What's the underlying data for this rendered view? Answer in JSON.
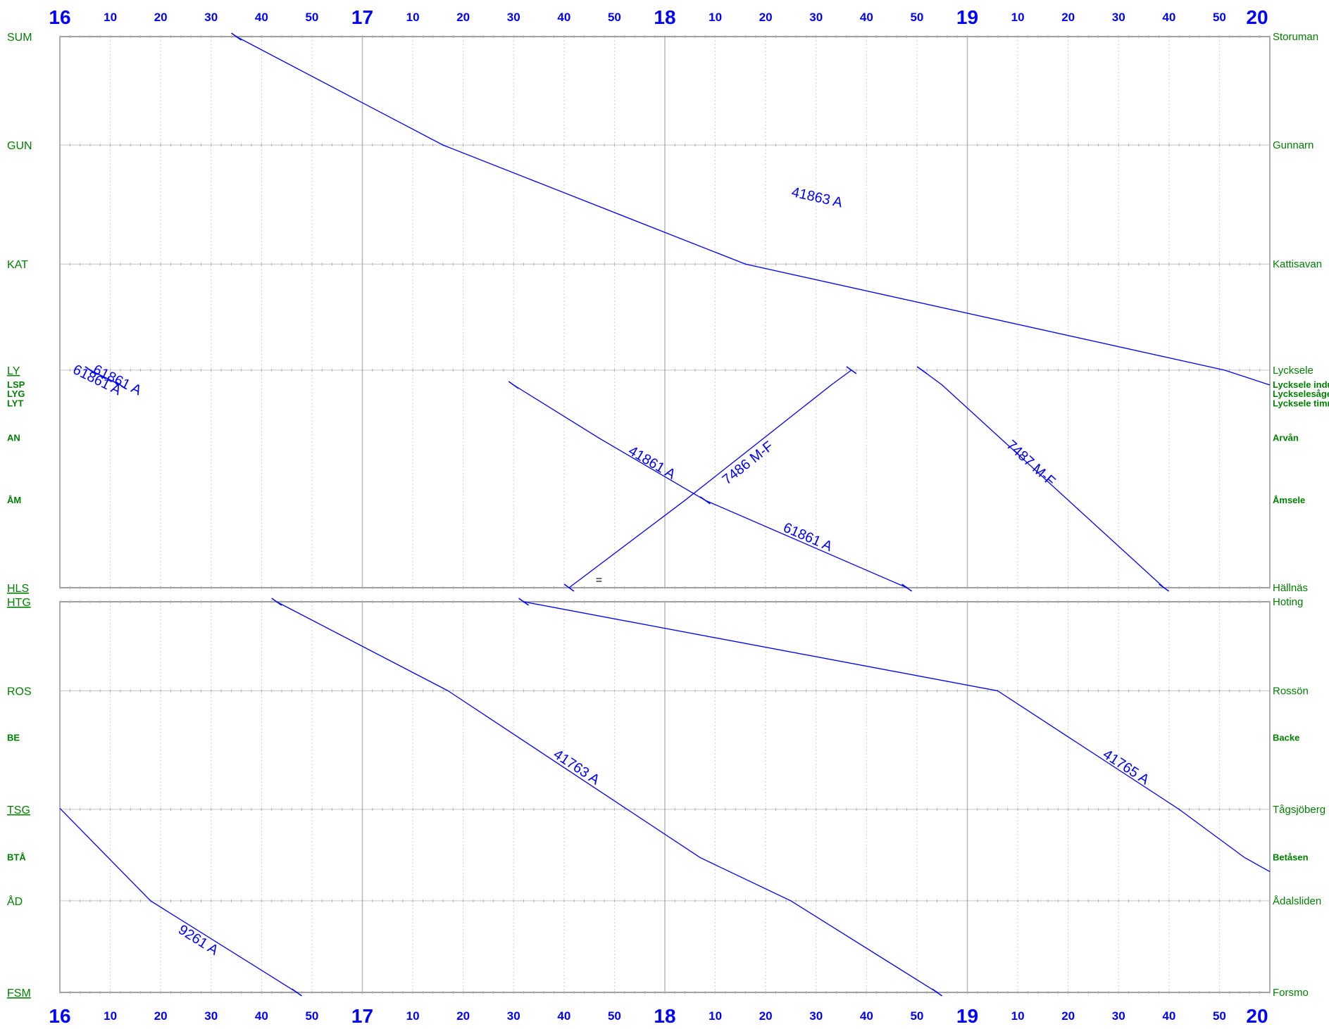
{
  "chart_data": {
    "type": "train-graph",
    "time_axis": {
      "start": "16:00",
      "end": "20:00",
      "hour_labels": [
        "16",
        "17",
        "18",
        "19",
        "20"
      ],
      "minute_labels": [
        "10",
        "20",
        "30",
        "40",
        "50"
      ],
      "minor_tick_minutes": 2
    },
    "panels": [
      {
        "stations": [
          {
            "code": "SUM",
            "name": "Storuman",
            "km": 0,
            "bold": false,
            "underline": false
          },
          {
            "code": "GUN",
            "name": "Gunnarn",
            "km": 17.5,
            "bold": false,
            "underline": false
          },
          {
            "code": "KAT",
            "name": "Kattisavan",
            "km": 36.7,
            "bold": false,
            "underline": false
          },
          {
            "code": "LY",
            "name": "Lycksele",
            "km": 53.8,
            "bold": false,
            "underline": true
          },
          {
            "code": "LSP",
            "name": "Lycksele industrispår",
            "km": 56.2,
            "bold": true,
            "underline": false
          },
          {
            "code": "LYG",
            "name": "Lyckselesågen",
            "km": 57.7,
            "bold": true,
            "underline": false
          },
          {
            "code": "LYT",
            "name": "Lycksele timmerterminal",
            "km": 59.2,
            "bold": true,
            "underline": false
          },
          {
            "code": "AN",
            "name": "Arvån",
            "km": 64.8,
            "bold": true,
            "underline": false
          },
          {
            "code": "ÅM",
            "name": "Åmsele",
            "km": 74.8,
            "bold": true,
            "underline": false
          },
          {
            "code": "HLS",
            "name": "Hällnäs",
            "km": 88.9,
            "bold": false,
            "underline": true
          }
        ],
        "trains": [
          {
            "id": "41863 A",
            "points": [
              [
                "16:35",
                "SUM"
              ],
              [
                "17:16",
                "GUN"
              ],
              [
                "18:16",
                "KAT"
              ],
              [
                "19:51",
                "LY"
              ],
              [
                "20:00",
                "LSP"
              ]
            ],
            "label_at": [
              "18:30",
              "GUN-KAT"
            ]
          },
          {
            "id": "41861 A",
            "points": [
              [
                "17:30",
                "LSP"
              ],
              [
                "17:47",
                "AN"
              ],
              [
                "18:08",
                "ÅM"
              ]
            ],
            "label_at": [
              "17:57",
              "AN-ÅM"
            ]
          },
          {
            "id": "61861 A",
            "points": [
              [
                "18:08",
                "ÅM"
              ],
              [
                "18:48",
                "HLS"
              ]
            ],
            "label_at": [
              "18:28",
              "ÅM-HLS"
            ]
          },
          {
            "id": "7486 M-F",
            "points": [
              [
                "17:41",
                "HLS"
              ],
              [
                "18:04",
                "ÅM"
              ],
              [
                "18:33",
                "LSP"
              ],
              [
                "18:37",
                "LY"
              ]
            ],
            "label_at": [
              "18:17",
              "AN-ÅM"
            ]
          },
          {
            "id": "7487 M-F",
            "points": [
              [
                "18:51",
                "LY"
              ],
              [
                "18:55",
                "LSP"
              ],
              [
                "19:39",
                "HLS"
              ]
            ],
            "label_at": [
              "19:12",
              "AN-ÅM"
            ]
          },
          {
            "id": "61861 A",
            "points": [
              [
                "16:06",
                "LY"
              ],
              [
                "16:12",
                "LSP"
              ]
            ],
            "label_at": [
              "16:07",
              "LY-LYT"
            ]
          },
          {
            "id": "61861 A",
            "points": [
              [
                "16:06",
                "LY"
              ],
              [
                "16:12",
                "LSP"
              ]
            ],
            "label_at": [
              "16:11",
              "LY-LYT"
            ]
          }
        ],
        "notes": [
          {
            "text": "=",
            "at": [
              "17:46",
              "HLS"
            ]
          }
        ]
      },
      {
        "stations": [
          {
            "code": "HTG",
            "name": "Hoting",
            "km": 0,
            "bold": false,
            "underline": true
          },
          {
            "code": "ROS",
            "name": "Rossön",
            "km": 14.2,
            "bold": false,
            "underline": false
          },
          {
            "code": "BE",
            "name": "Backe",
            "km": 21.7,
            "bold": true,
            "underline": false
          },
          {
            "code": "TSG",
            "name": "Tågsjöberg",
            "km": 33.1,
            "bold": false,
            "underline": true
          },
          {
            "code": "BTÅ",
            "name": "Betåsen",
            "km": 40.8,
            "bold": true,
            "underline": false
          },
          {
            "code": "ÅD",
            "name": "Ådalsliden",
            "km": 47.7,
            "bold": false,
            "underline": false
          },
          {
            "code": "FSM",
            "name": "Forsmo",
            "km": 62.3,
            "bold": false,
            "underline": true
          }
        ],
        "trains": [
          {
            "id": "41763 A",
            "points": [
              [
                "16:43",
                "HTG"
              ],
              [
                "17:17",
                "ROS"
              ],
              [
                "18:07",
                "BTÅ"
              ],
              [
                "18:25",
                "ÅD"
              ],
              [
                "18:54",
                "FSM"
              ]
            ],
            "label_at": [
              "17:42",
              "BE-TSG"
            ]
          },
          {
            "id": "41765 A",
            "points": [
              [
                "17:32",
                "HTG"
              ],
              [
                "19:06",
                "ROS"
              ],
              [
                "19:42",
                "TSG"
              ],
              [
                "19:55",
                "BTÅ"
              ],
              [
                "20:00",
                "BTÅ+"
              ]
            ],
            "label_at": [
              "19:31",
              "BE-TSG"
            ]
          },
          {
            "id": "9261 A",
            "points": [
              [
                "16:00",
                "BTÅ-"
              ],
              [
                "16:18",
                "ÅD"
              ],
              [
                "16:47",
                "FSM"
              ]
            ],
            "label_at": [
              "16:27",
              "ÅD-FSM"
            ]
          }
        ]
      }
    ]
  }
}
